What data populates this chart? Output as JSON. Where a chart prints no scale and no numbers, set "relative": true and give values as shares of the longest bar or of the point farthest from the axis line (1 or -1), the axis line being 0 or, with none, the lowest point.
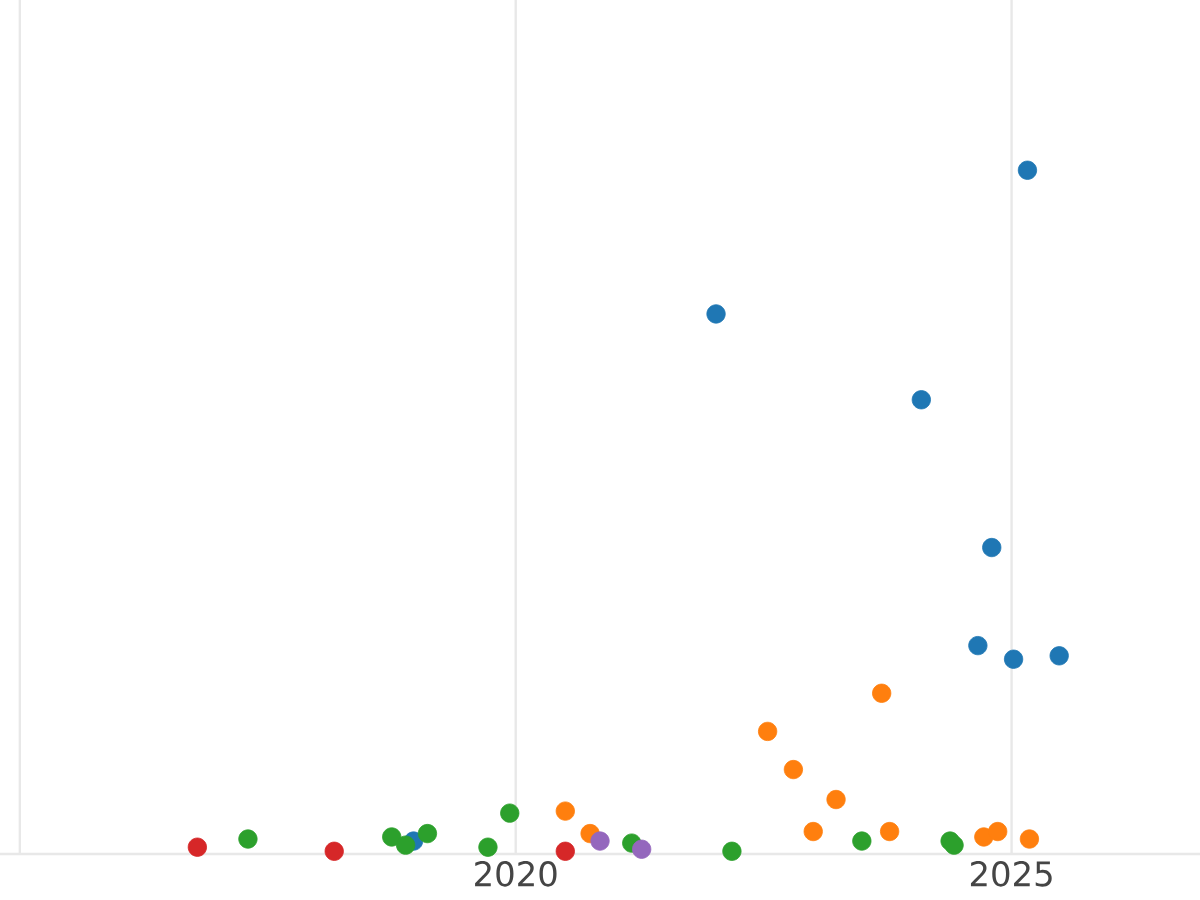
{
  "chart_data": {
    "type": "scatter",
    "relative": true,
    "grid": "x",
    "marker": "circle",
    "tick_labels": "x",
    "xlim": [
      2014.8,
      2026.9
    ],
    "xticks": [
      {
        "value": 2015,
        "label": null
      },
      2020,
      2025
    ],
    "series": [
      {
        "color": "#1f77b4",
        "x": [
          2025.16,
          2022.02,
          2024.09,
          2024.8,
          2024.66,
          2025.02,
          2025.48,
          2018.97
        ],
        "values": [
          1.0,
          0.789,
          0.663,
          0.446,
          0.302,
          0.282,
          0.287,
          0.015
        ]
      },
      {
        "color": "#ff7f0e",
        "x": [
          2022.54,
          2022.8,
          2023.69,
          2023.23,
          2023.0,
          2023.77,
          2020.5,
          2020.75,
          2024.72,
          2024.86,
          2025.18
        ],
        "values": [
          0.176,
          0.12,
          0.232,
          0.076,
          0.029,
          0.029,
          0.059,
          0.026,
          0.021,
          0.029,
          0.018
        ]
      },
      {
        "color": "#2ca02c",
        "x": [
          2017.3,
          2018.75,
          2018.89,
          2019.11,
          2019.72,
          2019.94,
          2021.17,
          2022.18,
          2023.49,
          2024.38,
          2024.42
        ],
        "values": [
          0.018,
          0.021,
          0.009,
          0.026,
          0.006,
          0.056,
          0.012,
          0.0,
          0.015,
          0.015,
          0.009
        ]
      },
      {
        "color": "#d62728",
        "x": [
          2016.79,
          2018.17,
          2020.5
        ],
        "values": [
          0.006,
          0.0,
          0.0
        ]
      },
      {
        "color": "#9467bd",
        "x": [
          2020.85,
          2021.27
        ],
        "values": [
          0.015,
          0.003
        ]
      }
    ]
  }
}
